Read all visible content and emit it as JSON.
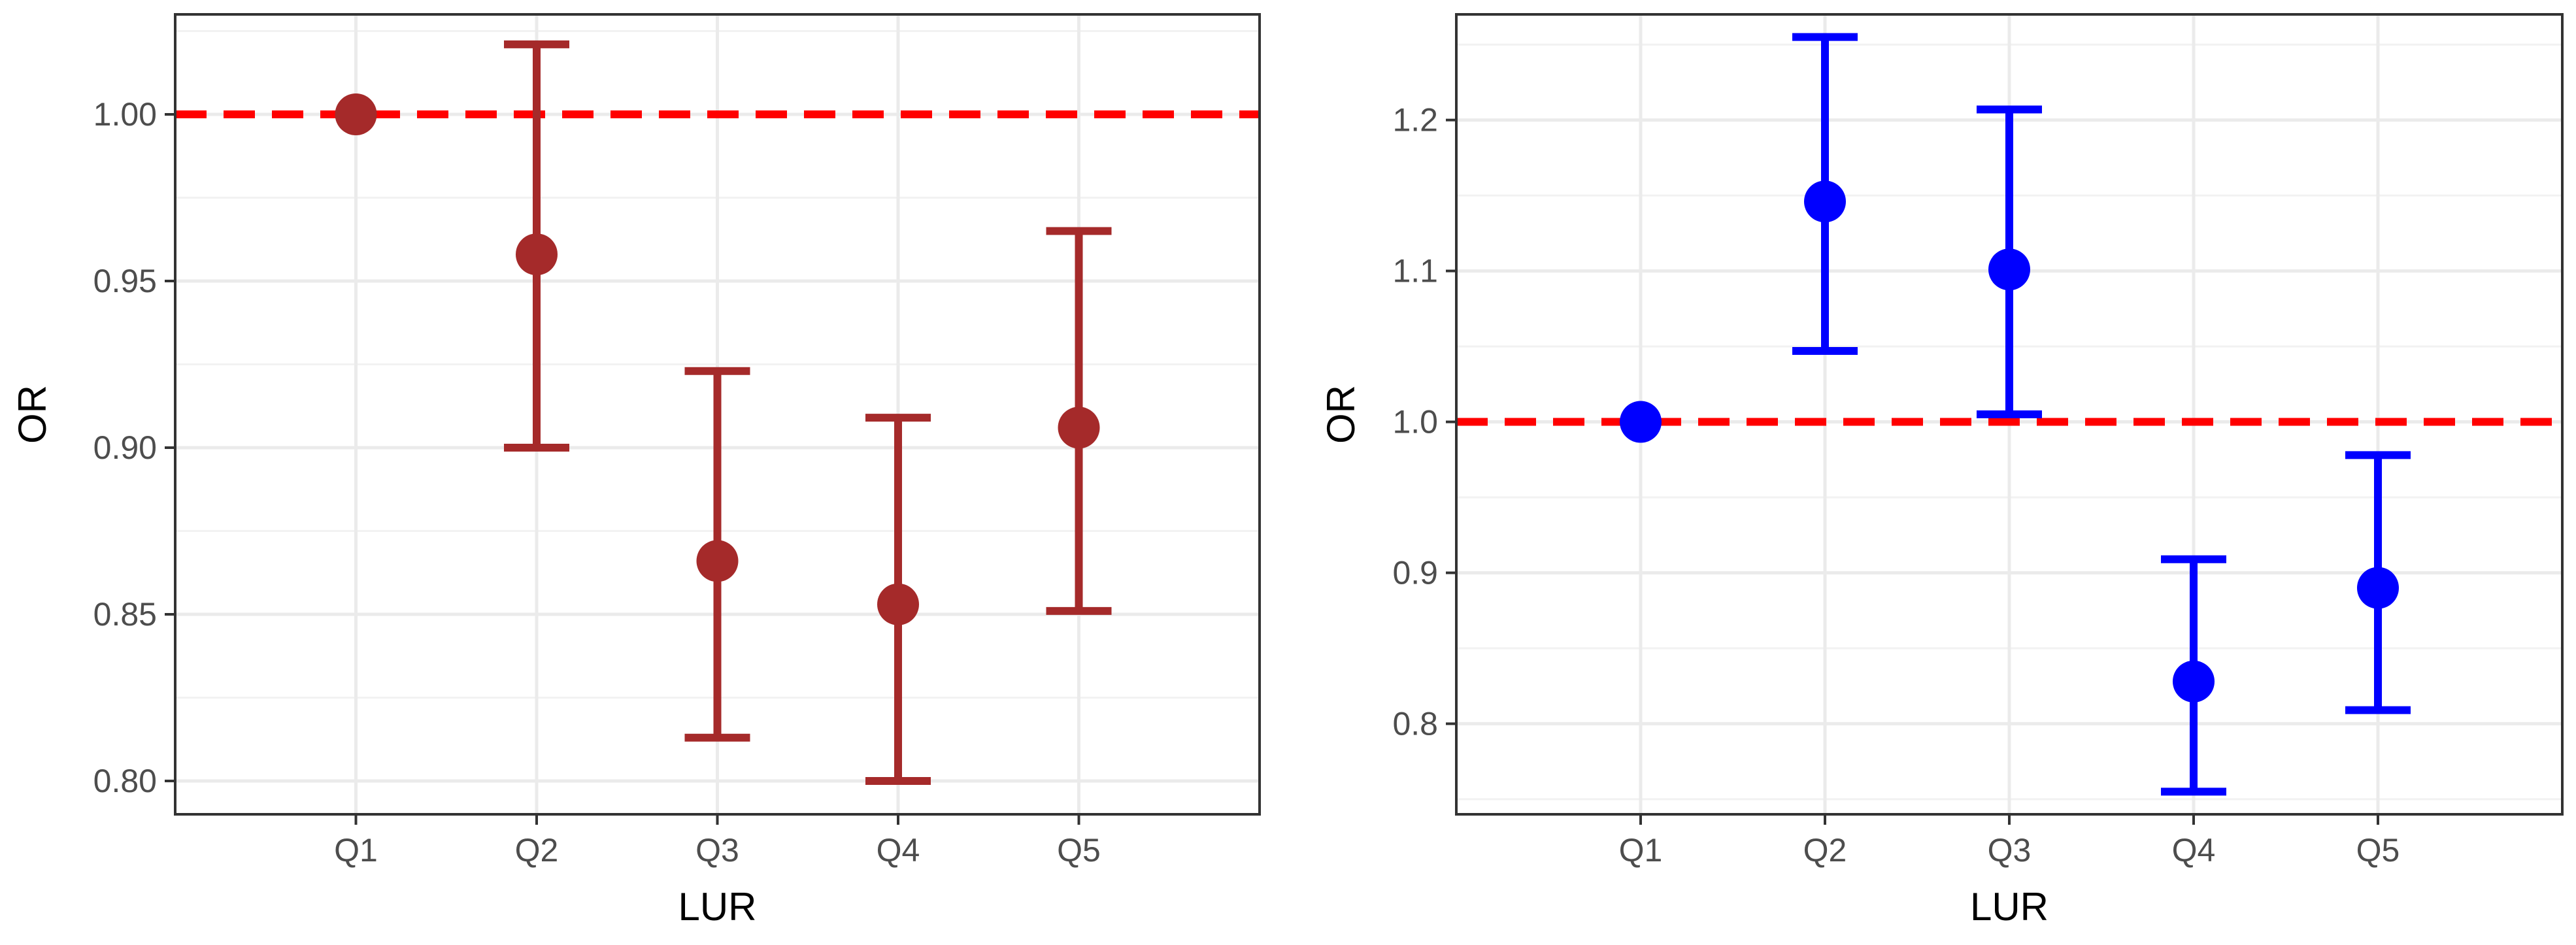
{
  "chart_data": [
    {
      "type": "scatter",
      "subtype": "point-errorbar",
      "categories": [
        "Q1",
        "Q2",
        "Q3",
        "Q4",
        "Q5"
      ],
      "values": [
        1.0,
        0.958,
        0.866,
        0.853,
        0.906
      ],
      "lower": [
        1.0,
        0.9,
        0.813,
        0.8,
        0.851
      ],
      "upper": [
        1.0,
        1.021,
        0.923,
        0.909,
        0.965
      ],
      "reference_line": 1.0,
      "xlabel": "LUR",
      "ylabel": "OR",
      "ylim": [
        0.79,
        1.03
      ],
      "yticks": [
        0.8,
        0.85,
        0.9,
        0.95,
        1.0
      ],
      "ytick_labels": [
        "0.80",
        "0.85",
        "0.90",
        "0.95",
        "1.00"
      ],
      "grid": true,
      "point_color": "#a52a2a",
      "ref_color": "#ff0000"
    },
    {
      "type": "scatter",
      "subtype": "point-errorbar",
      "categories": [
        "Q1",
        "Q2",
        "Q3",
        "Q4",
        "Q5"
      ],
      "values": [
        1.0,
        1.146,
        1.101,
        0.828,
        0.89
      ],
      "lower": [
        1.0,
        1.047,
        1.005,
        0.755,
        0.809
      ],
      "upper": [
        1.0,
        1.255,
        1.207,
        0.909,
        0.978
      ],
      "reference_line": 1.0,
      "xlabel": "LUR",
      "ylabel": "OR",
      "ylim": [
        0.74,
        1.27
      ],
      "yticks": [
        0.8,
        0.9,
        1.0,
        1.1,
        1.2
      ],
      "ytick_labels": [
        "0.8",
        "0.9",
        "1.0",
        "1.1",
        "1.2"
      ],
      "grid": true,
      "point_color": "#0000ff",
      "ref_color": "#ff0000"
    }
  ]
}
